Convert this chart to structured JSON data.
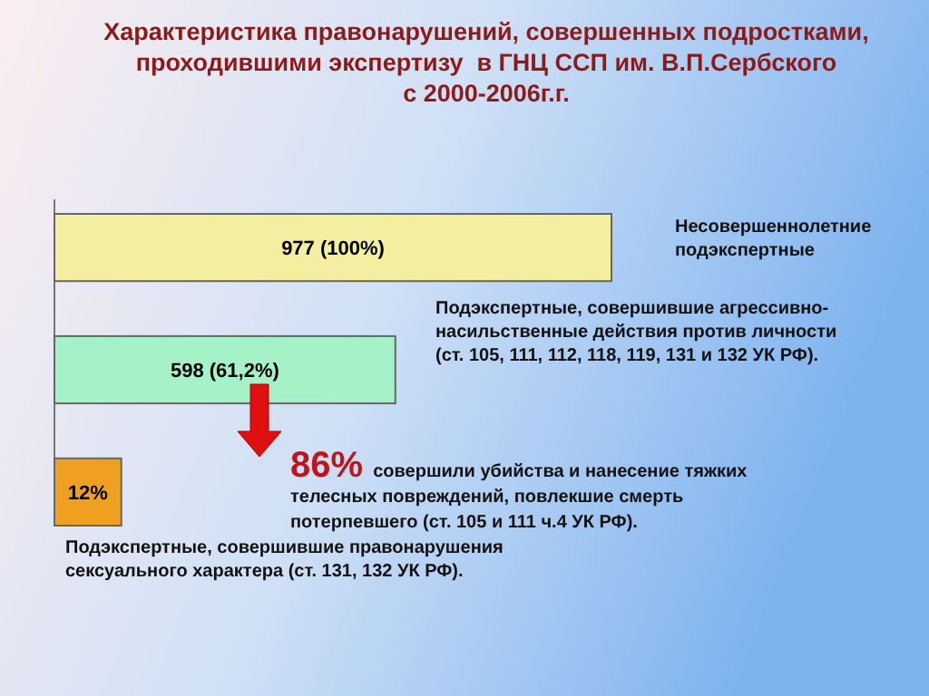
{
  "chart_data": {
    "type": "bar",
    "orientation": "horizontal",
    "title": "Характеристика правонарушений, совершенных подростками,\nпроходившими экспертизу  в ГНЦ ССП им. В.П.Сербского\nс 2000-2006г.г.",
    "categories": [
      null,
      null,
      null
    ],
    "values": [
      100,
      61.2,
      12
    ],
    "value_labels": [
      "977 (100%)",
      "598 (61,2%)",
      "12%"
    ],
    "colors": [
      "#f4efa0",
      "#a6f2c8",
      "#f0a020"
    ],
    "annotations": [
      "Несовершеннолетние\nподэкспертные",
      "Подэкспертные, совершившие агрессивно-\nнасильственные действия против личности\n(ст. 105, 111, 112, 118, 119, 131 и 132 УК РФ).",
      "86% совершили убийства и нанесение тяжких\nтелесных повреждений, повлекшие смерть\nпотерпевшего (ст. 105 и 111 ч.4 УК РФ).",
      "Подэкспертные, совершившие правонарушения\nсексуального характера (ст. 131, 132 УК РФ)."
    ]
  }
}
